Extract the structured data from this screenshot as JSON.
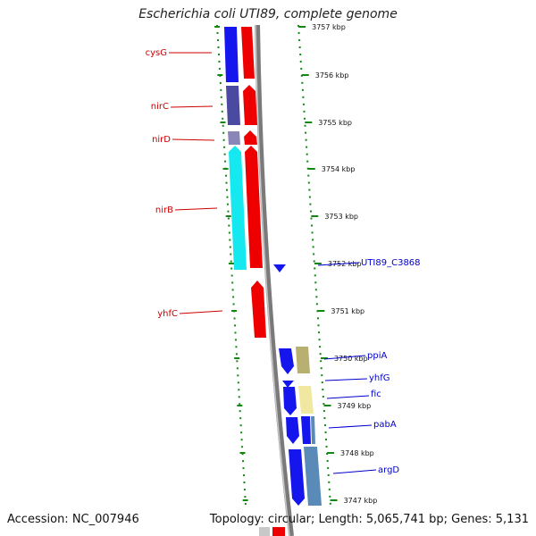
{
  "title": "Escherichia coli UTI89, complete genome",
  "footer": {
    "accession": "Accession: NC_007946",
    "summary": "Topology: circular; Length: 5,065,741 bp; Genes: 5,131"
  },
  "colors": {
    "forward_blue": "#1515ee",
    "reverse_red": "#ee0000",
    "slate": "#4a4aa0",
    "cyan": "#16e8f0",
    "khaki": "#b8b070",
    "pale_yellow": "#f0e8a0",
    "steel_blue": "#5a8ab8",
    "label_red": "#cc0000",
    "label_blue": "#0000cc",
    "tick_green": "#118811"
  },
  "ticks": [
    {
      "label": "3757 kbp"
    },
    {
      "label": "3756 kbp"
    },
    {
      "label": "3755 kbp"
    },
    {
      "label": "3754 kbp"
    },
    {
      "label": "3753 kbp"
    },
    {
      "label": "3752 kbp"
    },
    {
      "label": "3751 kbp"
    },
    {
      "label": "3750 kbp"
    },
    {
      "label": "3749 kbp"
    },
    {
      "label": "3748 kbp"
    },
    {
      "label": "3747 kbp"
    }
  ],
  "genes_left": [
    {
      "name": "cysG"
    },
    {
      "name": "nirC"
    },
    {
      "name": "nirD"
    },
    {
      "name": "nirB"
    },
    {
      "name": "yhfC"
    }
  ],
  "genes_right": [
    {
      "name": "UTI89_C3868"
    },
    {
      "name": "ppiA"
    },
    {
      "name": "yhfG"
    },
    {
      "name": "fic"
    },
    {
      "name": "pabA"
    },
    {
      "name": "argD"
    }
  ]
}
